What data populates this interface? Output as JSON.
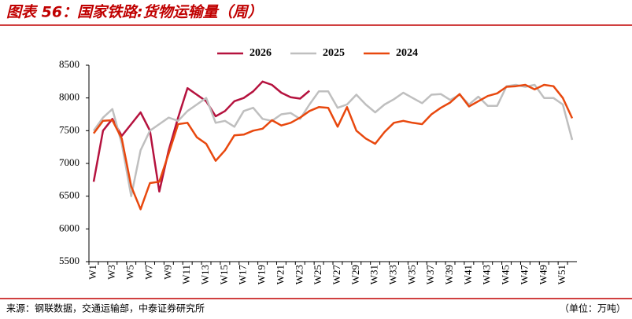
{
  "chart_data": {
    "type": "line",
    "title": "图表 56：国家铁路:货物运输量（周）",
    "source": "来源：钢联数据，交通运输部，中泰证券研究所",
    "unit": "（单位：万吨）",
    "categories": [
      "W1",
      null,
      "W3",
      null,
      "W5",
      null,
      "W7",
      null,
      "W9",
      null,
      "W11",
      null,
      "W13",
      null,
      "W15",
      null,
      "W17",
      null,
      "W19",
      null,
      "W21",
      null,
      "W23",
      null,
      "W25",
      null,
      "W27",
      null,
      "W29",
      null,
      "W31",
      null,
      "W33",
      null,
      "W35",
      null,
      "W37",
      null,
      "W39",
      null,
      "W41",
      null,
      "W43",
      null,
      "W45",
      null,
      "W47",
      null,
      "W49",
      null,
      "W51",
      null
    ],
    "ylim": [
      5500,
      8500
    ],
    "yticks": [
      5500,
      6000,
      6500,
      7000,
      7500,
      8000,
      8500
    ],
    "series": [
      {
        "name": "2026",
        "color": "#b5123e",
        "values": [
          6720,
          7500,
          7680,
          7420,
          7600,
          7780,
          7500,
          6570,
          7200,
          7700,
          8150,
          8050,
          7950,
          7720,
          7800,
          7950,
          8000,
          8100,
          8250,
          8200,
          8080,
          8010,
          7990,
          8110,
          null,
          null,
          null,
          null,
          null,
          null,
          null,
          null,
          null,
          null,
          null,
          null,
          null,
          null,
          null,
          null,
          null,
          null,
          null,
          null,
          null,
          null,
          null,
          null,
          null,
          null,
          null,
          null
        ]
      },
      {
        "name": "2025",
        "color": "#bfbfbf",
        "values": [
          7500,
          7700,
          7830,
          7300,
          6500,
          7200,
          7500,
          7600,
          7700,
          7650,
          7800,
          7900,
          8000,
          7620,
          7650,
          7560,
          7800,
          7850,
          7680,
          7650,
          7750,
          7770,
          7680,
          7900,
          8100,
          8100,
          7850,
          7900,
          8050,
          7900,
          7780,
          7900,
          7980,
          8080,
          8000,
          7920,
          8050,
          8060,
          7970,
          8050,
          7900,
          8020,
          7880,
          7880,
          8180,
          8200,
          8170,
          8200,
          8000,
          8000,
          7900,
          7360
        ]
      },
      {
        "name": "2024",
        "color": "#e8480e",
        "values": [
          7460,
          7650,
          7660,
          7380,
          6650,
          6300,
          6700,
          6720,
          7150,
          7600,
          7620,
          7400,
          7300,
          7040,
          7200,
          7430,
          7440,
          7500,
          7530,
          7660,
          7580,
          7620,
          7700,
          7800,
          7860,
          7850,
          7560,
          7860,
          7500,
          7380,
          7300,
          7480,
          7620,
          7650,
          7620,
          7600,
          7750,
          7850,
          7930,
          8060,
          7870,
          7950,
          8030,
          8070,
          8170,
          8180,
          8200,
          8130,
          8200,
          8180,
          8000,
          7690
        ]
      }
    ]
  }
}
